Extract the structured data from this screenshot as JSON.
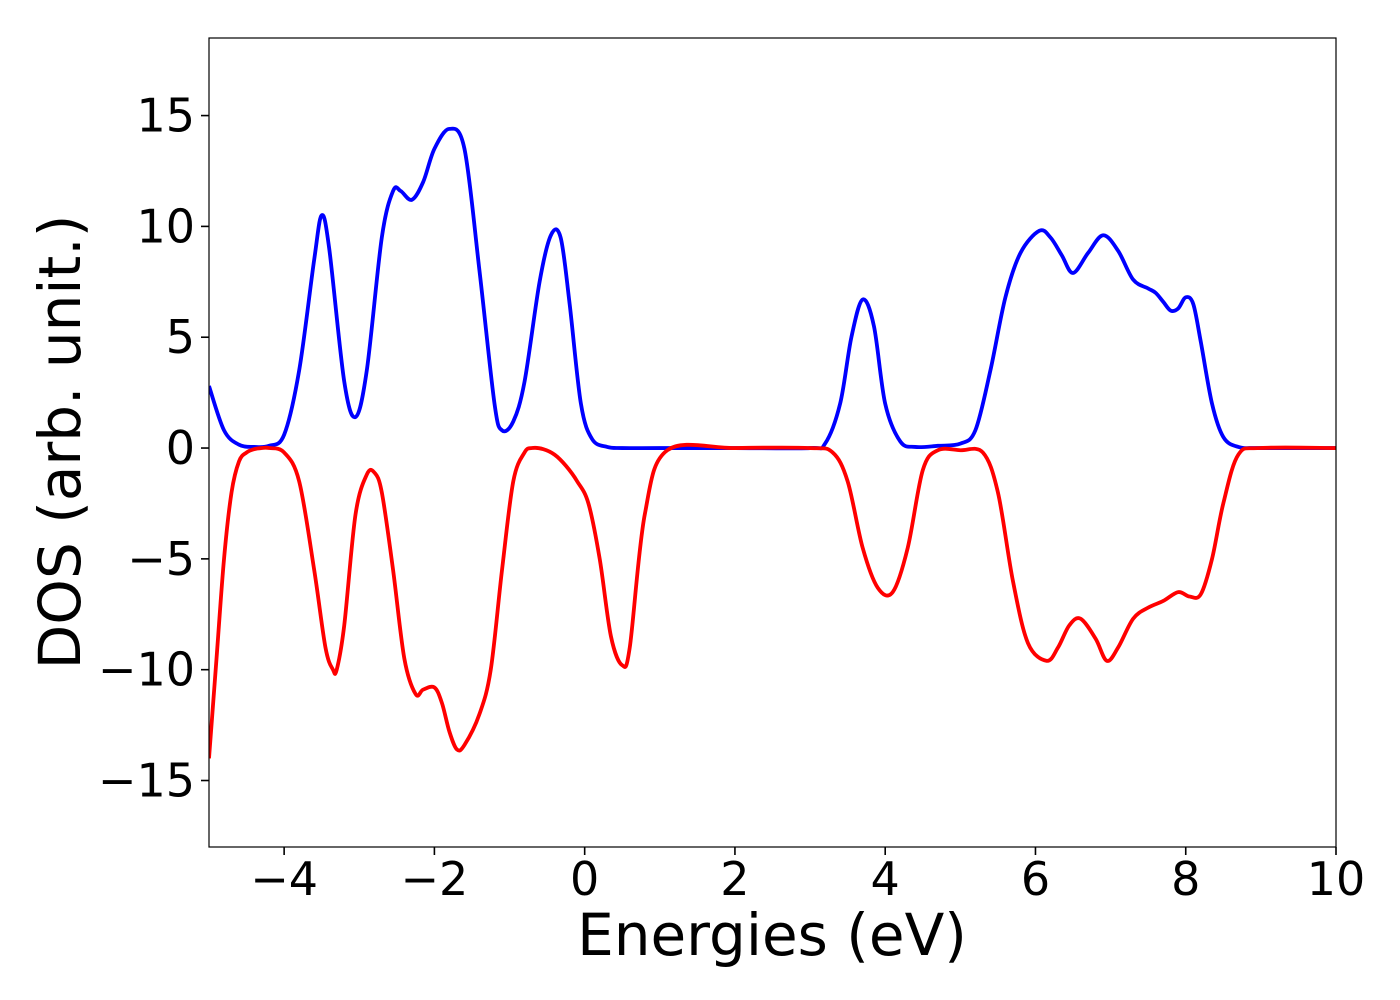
{
  "chart_data": {
    "type": "line",
    "title": "",
    "xlabel": "Energies (eV)",
    "ylabel": "DOS (arb. unit.)",
    "xlim": [
      -5,
      10
    ],
    "ylim": [
      -18,
      18.5
    ],
    "xticks": [
      -4,
      -2,
      0,
      2,
      4,
      6,
      8,
      10
    ],
    "xtick_labels": [
      "−4",
      "−2",
      "0",
      "2",
      "4",
      "6",
      "8",
      "10"
    ],
    "yticks": [
      -15,
      -10,
      -5,
      0,
      5,
      10,
      15
    ],
    "ytick_labels": [
      "−15",
      "−10",
      "−5",
      "0",
      "5",
      "10",
      "15"
    ],
    "grid": false,
    "legend": "none",
    "series": [
      {
        "color": "#0000ff",
        "x": [
          -5.0,
          -4.8,
          -4.6,
          -4.4,
          -4.2,
          -4.0,
          -3.8,
          -3.6,
          -3.5,
          -3.4,
          -3.2,
          -3.05,
          -2.9,
          -2.7,
          -2.55,
          -2.45,
          -2.3,
          -2.15,
          -2.0,
          -1.8,
          -1.6,
          -1.4,
          -1.2,
          -1.1,
          -0.95,
          -0.8,
          -0.6,
          -0.45,
          -0.32,
          -0.2,
          -0.05,
          0.1,
          0.3,
          0.5,
          1.0,
          2.0,
          3.0,
          3.2,
          3.4,
          3.55,
          3.7,
          3.85,
          4.0,
          4.2,
          4.4,
          4.7,
          5.0,
          5.2,
          5.4,
          5.6,
          5.8,
          6.05,
          6.2,
          6.35,
          6.5,
          6.7,
          6.9,
          7.1,
          7.3,
          7.5,
          7.6,
          7.7,
          7.8,
          7.9,
          8.0,
          8.1,
          8.2,
          8.35,
          8.5,
          8.7,
          9.0,
          10.0
        ],
        "values": [
          2.8,
          0.8,
          0.15,
          0.05,
          0.1,
          0.6,
          3.5,
          8.5,
          10.5,
          9.0,
          3.0,
          1.4,
          3.5,
          9.5,
          11.6,
          11.6,
          11.2,
          12.0,
          13.5,
          14.4,
          13.5,
          8.0,
          2.0,
          0.8,
          1.2,
          3.0,
          7.5,
          9.6,
          9.5,
          6.5,
          2.0,
          0.4,
          0.05,
          0.0,
          0.0,
          0.0,
          0.0,
          0.2,
          2.0,
          5.0,
          6.7,
          5.5,
          2.0,
          0.3,
          0.05,
          0.1,
          0.2,
          0.8,
          3.5,
          6.8,
          8.8,
          9.8,
          9.5,
          8.7,
          7.9,
          8.8,
          9.6,
          8.9,
          7.6,
          7.2,
          7.0,
          6.6,
          6.2,
          6.3,
          6.8,
          6.5,
          4.8,
          2.0,
          0.5,
          0.05,
          0.0,
          0.0
        ]
      },
      {
        "color": "#ff0000",
        "x": [
          -5.0,
          -4.9,
          -4.8,
          -4.7,
          -4.6,
          -4.5,
          -4.4,
          -4.3,
          -4.2,
          -4.0,
          -3.8,
          -3.6,
          -3.45,
          -3.35,
          -3.3,
          -3.2,
          -3.05,
          -2.9,
          -2.8,
          -2.7,
          -2.55,
          -2.4,
          -2.25,
          -2.15,
          -2.0,
          -1.9,
          -1.8,
          -1.7,
          -1.6,
          -1.4,
          -1.25,
          -1.1,
          -0.95,
          -0.8,
          -0.7,
          -0.55,
          -0.4,
          -0.25,
          -0.1,
          0.05,
          0.2,
          0.35,
          0.5,
          0.6,
          0.8,
          1.1,
          2.0,
          3.0,
          3.3,
          3.5,
          3.7,
          3.9,
          4.1,
          4.3,
          4.5,
          4.7,
          5.0,
          5.3,
          5.5,
          5.7,
          5.9,
          6.15,
          6.3,
          6.45,
          6.6,
          6.8,
          6.95,
          7.1,
          7.3,
          7.5,
          7.7,
          7.9,
          8.05,
          8.2,
          8.35,
          8.5,
          8.7,
          9.0,
          10.0
        ],
        "values": [
          -14.0,
          -9.5,
          -5.0,
          -2.0,
          -0.6,
          -0.2,
          -0.05,
          0.0,
          0.0,
          -0.2,
          -1.5,
          -5.5,
          -9.0,
          -10.0,
          -10.0,
          -8.0,
          -3.0,
          -1.2,
          -1.1,
          -2.0,
          -5.5,
          -9.5,
          -11.1,
          -10.9,
          -10.8,
          -11.5,
          -12.8,
          -13.6,
          -13.4,
          -12.0,
          -10.0,
          -5.5,
          -1.5,
          -0.2,
          0.0,
          -0.05,
          -0.3,
          -0.8,
          -1.5,
          -2.5,
          -5.0,
          -8.5,
          -9.8,
          -9.0,
          -3.0,
          -0.1,
          0.0,
          0.0,
          -0.2,
          -1.5,
          -4.5,
          -6.3,
          -6.5,
          -4.5,
          -1.0,
          -0.1,
          -0.1,
          -0.2,
          -2.0,
          -6.0,
          -8.8,
          -9.6,
          -9.0,
          -8.0,
          -7.7,
          -8.6,
          -9.6,
          -9.0,
          -7.7,
          -7.2,
          -6.9,
          -6.5,
          -6.7,
          -6.6,
          -5.0,
          -2.5,
          -0.3,
          0.0,
          0.0
        ]
      }
    ]
  }
}
